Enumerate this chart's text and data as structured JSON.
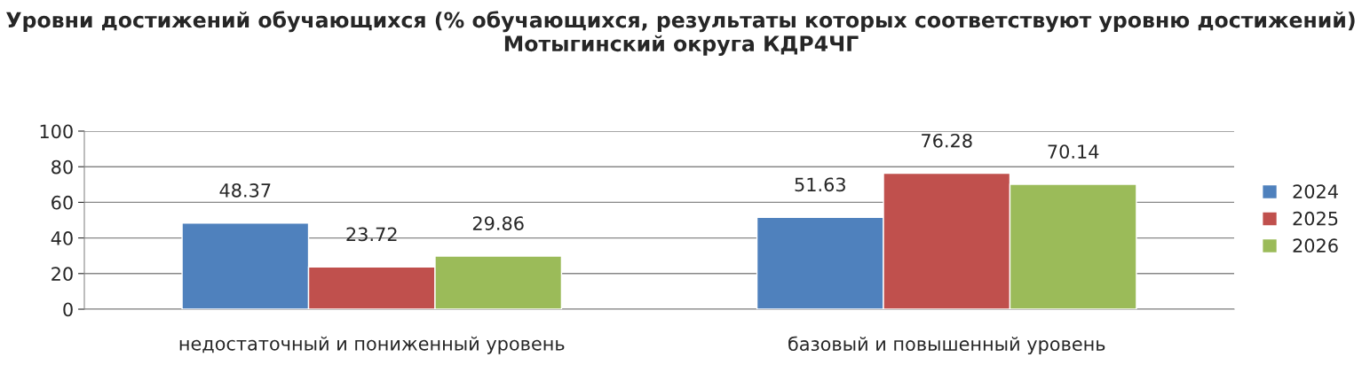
{
  "chart_data": {
    "type": "bar",
    "title": "Уровни достижений обучающихся (% обучающихся, результаты которых соответствуют уровню достижений) Мотыгинский округа КДР4ЧГ",
    "categories": [
      "недостаточный и пониженный уровень",
      "базовый и повышенный уровень"
    ],
    "series": [
      {
        "name": "2024",
        "color": "#4f81bd",
        "values": [
          48.37,
          51.63
        ]
      },
      {
        "name": "2025",
        "color": "#c0504d",
        "values": [
          23.72,
          76.28
        ]
      },
      {
        "name": "2026",
        "color": "#9bbb59",
        "values": [
          29.86,
          70.14
        ]
      }
    ],
    "ylim": [
      0,
      100
    ],
    "yticks": [
      0,
      20,
      40,
      60,
      80,
      100
    ],
    "grid": "y",
    "legend": "right",
    "data_labels": true
  }
}
